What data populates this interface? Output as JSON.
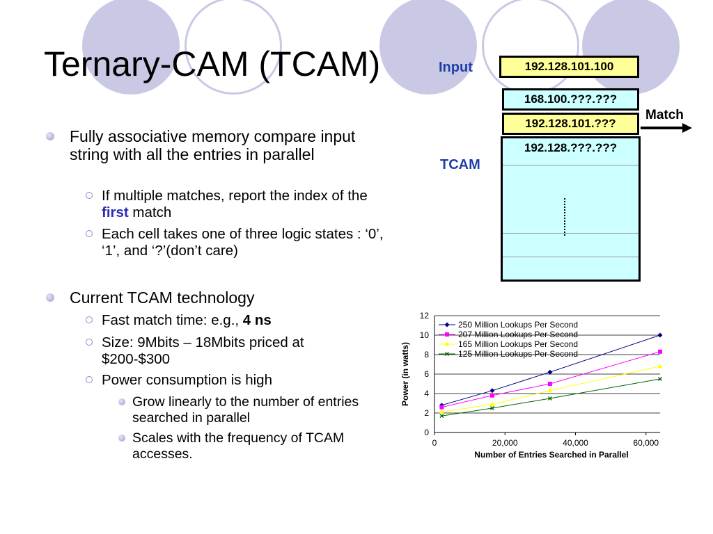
{
  "slide": {
    "title": "Ternary-CAM (TCAM)",
    "bullets": [
      {
        "text": "Fully associative memory compare input string with all the entries in parallel",
        "sub": [
          {
            "before": "If multiple matches, report the index of the ",
            "highlight": "first",
            "after": " match"
          },
          {
            "text": "Each cell takes one of three logic states : ‘0’,  ‘1’, and  ‘?’(don’t care)"
          }
        ]
      },
      {
        "text": "Current TCAM technology",
        "sub": [
          {
            "before": "Fast match time: e.g., ",
            "bold": "4 ns"
          },
          {
            "text": "Size: 9Mbits – 18Mbits priced at $200-$300"
          },
          {
            "text": "Power consumption is high",
            "sub": [
              {
                "text": "Grow linearly to the number of entries searched in parallel"
              },
              {
                "text": "Scales with the frequency of TCAM accesses."
              }
            ]
          }
        ]
      }
    ]
  },
  "diagram": {
    "input_label": "Input",
    "input_value": "192.128.101.100",
    "tcam_label": "TCAM",
    "match_label": "Match",
    "entries": [
      "168.100.???.???",
      "192.128.101.???",
      "192.128.???.???"
    ],
    "colors": {
      "input_fill": "#ffff99",
      "matched_fill": "#ffff99",
      "table_fill": "#ccffff",
      "label_blue": "#1f3fa8"
    }
  },
  "chart_data": {
    "type": "line",
    "xlabel": "Number of Entries Searched in Parallel",
    "ylabel": "Power (in watts)",
    "xlim": [
      0,
      64000
    ],
    "ylim": [
      0,
      12
    ],
    "xticks": [
      "0",
      "20,000",
      "40,000",
      "60,000"
    ],
    "yticks": [
      "0",
      "2",
      "4",
      "6",
      "8",
      "10",
      "12"
    ],
    "legend_position": "top-left",
    "series": [
      {
        "name": "250 Million Lookups Per Second",
        "color": "#000080",
        "marker": "diamond",
        "x": [
          2048,
          16384,
          32768,
          65536
        ],
        "y": [
          2.8,
          4.3,
          6.2,
          10.0
        ]
      },
      {
        "name": "207 Million Lookups Per Second",
        "color": "#ff00ff",
        "marker": "square",
        "x": [
          2048,
          16384,
          32768,
          65536
        ],
        "y": [
          2.6,
          3.8,
          5.0,
          8.3
        ]
      },
      {
        "name": "165 Million Lookups Per Second",
        "color": "#ffff00",
        "marker": "triangle",
        "x": [
          2048,
          16384,
          32768,
          65536
        ],
        "y": [
          2.1,
          2.9,
          4.3,
          6.8
        ]
      },
      {
        "name": "125 Million Lookups Per Second",
        "color": "#006400",
        "marker": "x",
        "x": [
          2048,
          16384,
          32768,
          65536
        ],
        "y": [
          1.7,
          2.5,
          3.5,
          5.5
        ]
      }
    ]
  }
}
